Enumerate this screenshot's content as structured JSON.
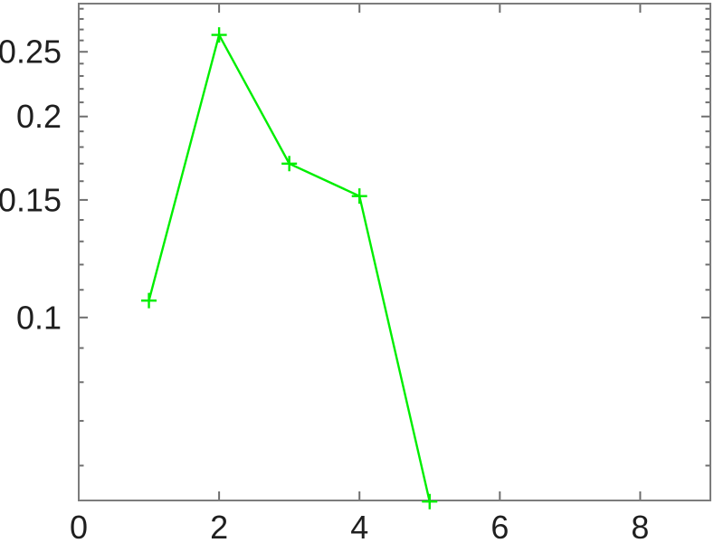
{
  "figure": {
    "background": "#ffffff",
    "axis_color": "#7c7c7c",
    "tick_color": "#6e6e6e",
    "label_color": "#1f1f1f",
    "tick_font_size_px": 36
  },
  "chart_data": {
    "type": "line",
    "title": "",
    "xlabel": "",
    "ylabel": "",
    "x": [
      1,
      2,
      3,
      4,
      5
    ],
    "y": [
      0.106,
      0.265,
      0.17,
      0.152,
      0.053
    ],
    "line_color": "#00ee00",
    "line_width": 2.4,
    "marker": "plus",
    "marker_size": 17,
    "xscale": "linear",
    "yscale": "log",
    "xlim": [
      0,
      9
    ],
    "ylim": [
      0.0532,
      0.2952
    ],
    "xticks": {
      "values": [
        0,
        2,
        4,
        6,
        8
      ],
      "labels": [
        "0",
        "2",
        "4",
        "6",
        "8"
      ]
    },
    "yticks": {
      "values": [
        0.25,
        0.2,
        0.15,
        0.1
      ],
      "labels": [
        "0.25",
        "0.2",
        "0.15",
        "0.1"
      ]
    },
    "y_minor_ticks": {
      "start": 0.06,
      "end": 0.29,
      "step": 0.01
    },
    "x_minor_ticks": false,
    "grid": false,
    "legend": false,
    "box": true
  }
}
